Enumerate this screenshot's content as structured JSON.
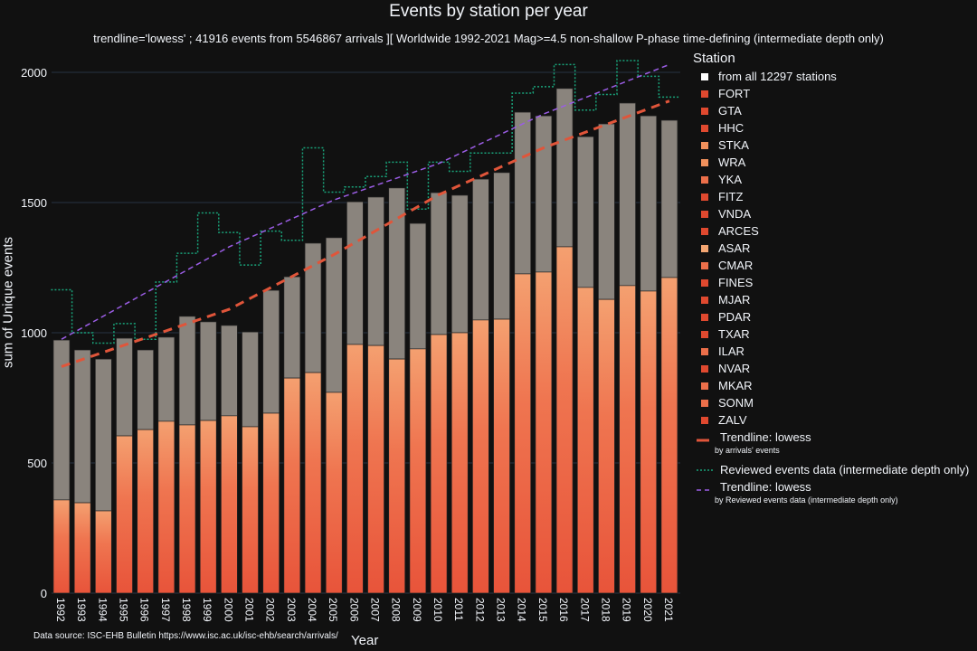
{
  "chart_data": {
    "type": "bar",
    "title": "Events by station per year",
    "subtitle": "trendline='lowess' ; 41916 events from 5546867 arrivals ][ Worldwide 1992-2021 Mag>=4.5 non-shallow P-phase time-defining (intermediate depth only)",
    "xlabel": "Year",
    "ylabel": "sum of Unique events",
    "ylim": [
      0,
      2100
    ],
    "yticks": [
      0,
      500,
      1000,
      1500,
      2000
    ],
    "grid": true,
    "legend_title": "Station",
    "legend_placement": "right",
    "categories": [
      "1992",
      "1993",
      "1994",
      "1995",
      "1996",
      "1997",
      "1998",
      "1999",
      "2000",
      "2001",
      "2002",
      "2003",
      "2004",
      "2005",
      "2006",
      "2007",
      "2008",
      "2009",
      "2010",
      "2011",
      "2012",
      "2013",
      "2014",
      "2015",
      "2016",
      "2017",
      "2018",
      "2019",
      "2020",
      "2021"
    ],
    "bar_totals": [
      972,
      934,
      899,
      979,
      934,
      983,
      1063,
      1042,
      1028,
      1003,
      1163,
      1215,
      1344,
      1365,
      1503,
      1521,
      1556,
      1420,
      1538,
      1528,
      1590,
      1615,
      1847,
      1833,
      1938,
      1753,
      1802,
      1882,
      1833,
      1816
    ],
    "named_stations_stack_totals": [
      358,
      347,
      316,
      604,
      628,
      660,
      646,
      663,
      681,
      639,
      691,
      826,
      847,
      771,
      955,
      951,
      899,
      938,
      993,
      1000,
      1049,
      1052,
      1226,
      1233,
      1330,
      1174,
      1128,
      1181,
      1160,
      1212
    ],
    "stations": [
      "from all 12297 stations",
      "FORT",
      "GTA",
      "HHC",
      "STKA",
      "WRA",
      "YKA",
      "FITZ",
      "VNDA",
      "ARCES",
      "ASAR",
      "CMAR",
      "FINES",
      "MJAR",
      "PDAR",
      "TXAR",
      "ILAR",
      "NVAR",
      "MKAR",
      "SONM",
      "ZALV"
    ],
    "station_colors": [
      "#ffffff",
      "#e0492f",
      "#e0492f",
      "#e0492f",
      "#f2915c",
      "#f2915c",
      "#ec6f4a",
      "#e0492f",
      "#e0492f",
      "#e0492f",
      "#f4a672",
      "#ec6f4a",
      "#e0492f",
      "#e0492f",
      "#e0492f",
      "#e0492f",
      "#ec6f4a",
      "#e0492f",
      "#ec6f4a",
      "#ec6f4a",
      "#e0492f"
    ],
    "reviewed": {
      "name": "Reviewed events data (intermediate depth only)",
      "color": "#19a37a",
      "values": [
        1165,
        1000,
        960,
        1035,
        975,
        1195,
        1305,
        1460,
        1385,
        1260,
        1390,
        1355,
        1710,
        1540,
        1560,
        1600,
        1655,
        1475,
        1655,
        1620,
        1690,
        1690,
        1920,
        1945,
        2030,
        1855,
        1915,
        2045,
        1985,
        1905
      ]
    },
    "trend_arrivals": {
      "name": "Trendline: lowess",
      "sub": "by arrivals' events",
      "color": "#e0553a",
      "x": [
        1992,
        2000,
        2005,
        2010,
        2015,
        2021
      ],
      "values": [
        870,
        1090,
        1300,
        1530,
        1710,
        1890
      ]
    },
    "trend_reviewed": {
      "name": "Trendline: lowess",
      "sub": "by Reviewed events data (intermediate depth only)",
      "color": "#9b5de5",
      "x": [
        1992,
        2000,
        2005,
        2010,
        2015,
        2021
      ],
      "values": [
        975,
        1330,
        1510,
        1650,
        1840,
        2030
      ]
    }
  },
  "source_text": "Data source: ISC-EHB Bulletin  https://www.isc.ac.uk/isc-ehb/search/arrivals/"
}
